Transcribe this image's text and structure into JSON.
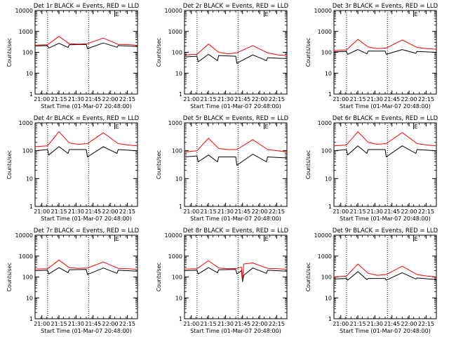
{
  "figure": {
    "time_axis_label": "Start Time (01-Mar-07 20:48:00)",
    "count_axis_label": "Counts/sec",
    "x_tick_labels": [
      "21:00",
      "21:15",
      "21:30",
      "21:45",
      "22:00",
      "22:15"
    ],
    "colors": {
      "events": "#000000",
      "lld": "#ff0000",
      "axes": "#000000",
      "background": "#ffffff"
    }
  },
  "chart_data": [
    {
      "id": "det1",
      "type": "line",
      "title": "Det 1r BLACK = Events, RED = LLD",
      "y_log": true,
      "ylim": [
        1,
        10000
      ],
      "y_ticks": [
        1,
        10,
        100,
        1000,
        10000
      ],
      "xlim_min": [
        6,
        96
      ],
      "x_ticks_min": [
        12,
        27,
        42,
        57,
        72,
        87
      ],
      "dotted_lines_min": [
        17,
        53
      ],
      "annotation": "E",
      "annotation_x_min": 76,
      "series": [
        {
          "name": "BLACK = Events",
          "color": "#000000",
          "x": [
            6,
            17,
            18,
            27,
            35,
            36,
            51,
            52,
            66,
            78,
            79,
            96
          ],
          "y": [
            200,
            210,
            160,
            270,
            170,
            230,
            240,
            150,
            280,
            175,
            210,
            190
          ]
        },
        {
          "name": "RED = LLD",
          "color": "#ff0000",
          "x": [
            6,
            17,
            27,
            36,
            44,
            52,
            66,
            79,
            88,
            96
          ],
          "y": [
            220,
            230,
            580,
            260,
            245,
            260,
            480,
            240,
            235,
            215
          ]
        }
      ]
    },
    {
      "id": "det2",
      "type": "line",
      "title": "Det 2r BLACK = Events, RED = LLD",
      "y_log": true,
      "ylim": [
        1,
        10000
      ],
      "y_ticks": [
        1,
        10,
        100,
        1000,
        10000
      ],
      "xlim_min": [
        6,
        96
      ],
      "x_ticks_min": [
        12,
        27,
        42,
        57,
        72,
        87
      ],
      "dotted_lines_min": [
        17,
        53
      ],
      "annotation": "E",
      "annotation_x_min": 76,
      "series": [
        {
          "name": "BLACK = Events",
          "color": "#000000",
          "x": [
            6,
            17,
            18,
            27,
            35,
            36,
            51,
            52,
            66,
            78,
            79,
            96
          ],
          "y": [
            60,
            65,
            35,
            80,
            40,
            70,
            65,
            30,
            75,
            40,
            55,
            50
          ]
        },
        {
          "name": "RED = LLD",
          "color": "#ff0000",
          "x": [
            6,
            17,
            27,
            36,
            44,
            52,
            66,
            79,
            88,
            96
          ],
          "y": [
            75,
            80,
            250,
            100,
            85,
            95,
            210,
            95,
            75,
            70
          ]
        }
      ]
    },
    {
      "id": "det3",
      "type": "line",
      "title": "Det 3r BLACK = Events, RED = LLD",
      "y_log": true,
      "ylim": [
        1,
        10000
      ],
      "y_ticks": [
        1,
        10,
        100,
        1000,
        10000
      ],
      "xlim_min": [
        6,
        96
      ],
      "x_ticks_min": [
        12,
        27,
        42,
        57,
        72,
        87
      ],
      "dotted_lines_min": [
        17,
        53
      ],
      "annotation": "E",
      "annotation_x_min": 76,
      "series": [
        {
          "name": "BLACK = Events",
          "color": "#000000",
          "x": [
            6,
            17,
            18,
            27,
            35,
            36,
            51,
            52,
            66,
            78,
            79,
            96
          ],
          "y": [
            105,
            110,
            80,
            135,
            85,
            115,
            115,
            80,
            135,
            90,
            110,
            100
          ]
        },
        {
          "name": "RED = LLD",
          "color": "#ff0000",
          "x": [
            6,
            17,
            27,
            36,
            44,
            52,
            66,
            79,
            88,
            96
          ],
          "y": [
            120,
            130,
            420,
            180,
            150,
            160,
            390,
            170,
            150,
            140
          ]
        }
      ]
    },
    {
      "id": "det4",
      "type": "line",
      "title": "Det 4r BLACK = Events, RED = LLD",
      "y_log": true,
      "ylim": [
        1,
        1000
      ],
      "y_ticks": [
        1,
        10,
        100,
        1000
      ],
      "xlim_min": [
        6,
        96
      ],
      "x_ticks_min": [
        12,
        27,
        42,
        57,
        72,
        87
      ],
      "dotted_lines_min": [
        17,
        53
      ],
      "annotation": "E",
      "annotation_x_min": 76,
      "series": [
        {
          "name": "BLACK = Events",
          "color": "#000000",
          "x": [
            6,
            17,
            18,
            27,
            35,
            36,
            51,
            52,
            66,
            78,
            79,
            96
          ],
          "y": [
            100,
            110,
            70,
            140,
            80,
            110,
            110,
            60,
            140,
            80,
            110,
            100
          ]
        },
        {
          "name": "RED = LLD",
          "color": "#ff0000",
          "x": [
            6,
            17,
            27,
            36,
            44,
            52,
            66,
            79,
            88,
            96
          ],
          "y": [
            140,
            150,
            480,
            190,
            170,
            180,
            440,
            180,
            160,
            150
          ]
        }
      ]
    },
    {
      "id": "det5",
      "type": "line",
      "title": "Det 5r BLACK = Events, RED = LLD",
      "y_log": true,
      "ylim": [
        1,
        1000
      ],
      "y_ticks": [
        1,
        10,
        100,
        1000
      ],
      "xlim_min": [
        6,
        96
      ],
      "x_ticks_min": [
        12,
        27,
        42,
        57,
        72,
        87
      ],
      "dotted_lines_min": [
        17,
        53
      ],
      "annotation": "E",
      "annotation_x_min": 76,
      "series": [
        {
          "name": "BLACK = Events",
          "color": "#000000",
          "x": [
            6,
            17,
            18,
            27,
            35,
            36,
            51,
            52,
            66,
            78,
            79,
            96
          ],
          "y": [
            60,
            65,
            40,
            70,
            40,
            60,
            60,
            30,
            75,
            40,
            60,
            55
          ]
        },
        {
          "name": "RED = LLD",
          "color": "#ff0000",
          "x": [
            6,
            17,
            27,
            36,
            44,
            52,
            66,
            79,
            88,
            96
          ],
          "y": [
            90,
            100,
            280,
            120,
            110,
            110,
            250,
            110,
            100,
            90
          ]
        }
      ]
    },
    {
      "id": "det6",
      "type": "line",
      "title": "Det 6r BLACK = Events, RED = LLD",
      "y_log": true,
      "ylim": [
        1,
        1000
      ],
      "y_ticks": [
        1,
        10,
        100,
        1000
      ],
      "xlim_min": [
        6,
        96
      ],
      "x_ticks_min": [
        12,
        27,
        42,
        57,
        72,
        87
      ],
      "dotted_lines_min": [
        17,
        53
      ],
      "annotation": "E",
      "annotation_x_min": 76,
      "series": [
        {
          "name": "BLACK = Events",
          "color": "#000000",
          "x": [
            6,
            17,
            18,
            27,
            35,
            36,
            51,
            52,
            66,
            78,
            79,
            96
          ],
          "y": [
            100,
            110,
            70,
            150,
            80,
            110,
            110,
            60,
            150,
            80,
            110,
            100
          ]
        },
        {
          "name": "RED = LLD",
          "color": "#ff0000",
          "x": [
            6,
            17,
            27,
            36,
            44,
            52,
            66,
            79,
            88,
            96
          ],
          "y": [
            150,
            160,
            480,
            200,
            170,
            180,
            450,
            180,
            160,
            150
          ]
        }
      ]
    },
    {
      "id": "det7",
      "type": "line",
      "title": "Det 7r BLACK = Events, RED = LLD",
      "y_log": true,
      "ylim": [
        1,
        10000
      ],
      "y_ticks": [
        1,
        10,
        100,
        1000,
        10000
      ],
      "xlim_min": [
        6,
        96
      ],
      "x_ticks_min": [
        12,
        27,
        42,
        57,
        72,
        87
      ],
      "dotted_lines_min": [
        17,
        53
      ],
      "annotation": "E",
      "annotation_x_min": 76,
      "series": [
        {
          "name": "BLACK = Events",
          "color": "#000000",
          "x": [
            6,
            17,
            18,
            27,
            35,
            36,
            51,
            52,
            66,
            78,
            79,
            96
          ],
          "y": [
            200,
            210,
            140,
            280,
            160,
            220,
            230,
            130,
            270,
            150,
            210,
            190
          ]
        },
        {
          "name": "RED = LLD",
          "color": "#ff0000",
          "x": [
            6,
            17,
            27,
            36,
            44,
            52,
            66,
            79,
            88,
            96
          ],
          "y": [
            240,
            250,
            650,
            280,
            260,
            270,
            520,
            260,
            250,
            230
          ]
        }
      ]
    },
    {
      "id": "det8",
      "type": "line",
      "title": "Det 8r BLACK = Events, RED = LLD",
      "y_log": true,
      "ylim": [
        1,
        10000
      ],
      "y_ticks": [
        1,
        10,
        100,
        1000,
        10000
      ],
      "xlim_min": [
        6,
        96
      ],
      "x_ticks_min": [
        12,
        27,
        42,
        57,
        72,
        87
      ],
      "dotted_lines_min": [
        17,
        53
      ],
      "annotation": "E",
      "annotation_x_min": 76,
      "series": [
        {
          "name": "BLACK = Events",
          "color": "#000000",
          "x": [
            6,
            17,
            18,
            27,
            35,
            36,
            51,
            52,
            56,
            57,
            58,
            66,
            78,
            79,
            96
          ],
          "y": [
            200,
            210,
            140,
            280,
            160,
            220,
            230,
            140,
            200,
            60,
            120,
            270,
            150,
            210,
            190
          ]
        },
        {
          "name": "RED = LLD",
          "color": "#ff0000",
          "x": [
            6,
            17,
            27,
            36,
            44,
            52,
            56,
            57,
            58,
            66,
            79,
            88,
            96
          ],
          "y": [
            240,
            250,
            600,
            270,
            250,
            260,
            300,
            70,
            420,
            470,
            260,
            250,
            230
          ]
        }
      ]
    },
    {
      "id": "det9",
      "type": "line",
      "title": "Det 9r BLACK = Events, RED = LLD",
      "y_log": true,
      "ylim": [
        1,
        10000
      ],
      "y_ticks": [
        1,
        10,
        100,
        1000,
        10000
      ],
      "xlim_min": [
        6,
        96
      ],
      "x_ticks_min": [
        12,
        27,
        42,
        57,
        72,
        87
      ],
      "dotted_lines_min": [
        17,
        53
      ],
      "annotation": "E",
      "annotation_x_min": 76,
      "series": [
        {
          "name": "BLACK = Events",
          "color": "#000000",
          "x": [
            6,
            17,
            18,
            27,
            35,
            36,
            51,
            52,
            66,
            78,
            79,
            96
          ],
          "y": [
            80,
            85,
            70,
            180,
            75,
            85,
            85,
            70,
            160,
            80,
            90,
            75
          ]
        },
        {
          "name": "RED = LLD",
          "color": "#ff0000",
          "x": [
            6,
            17,
            27,
            36,
            44,
            52,
            66,
            79,
            88,
            96
          ],
          "y": [
            100,
            110,
            420,
            150,
            120,
            130,
            330,
            130,
            110,
            100
          ]
        }
      ]
    }
  ]
}
